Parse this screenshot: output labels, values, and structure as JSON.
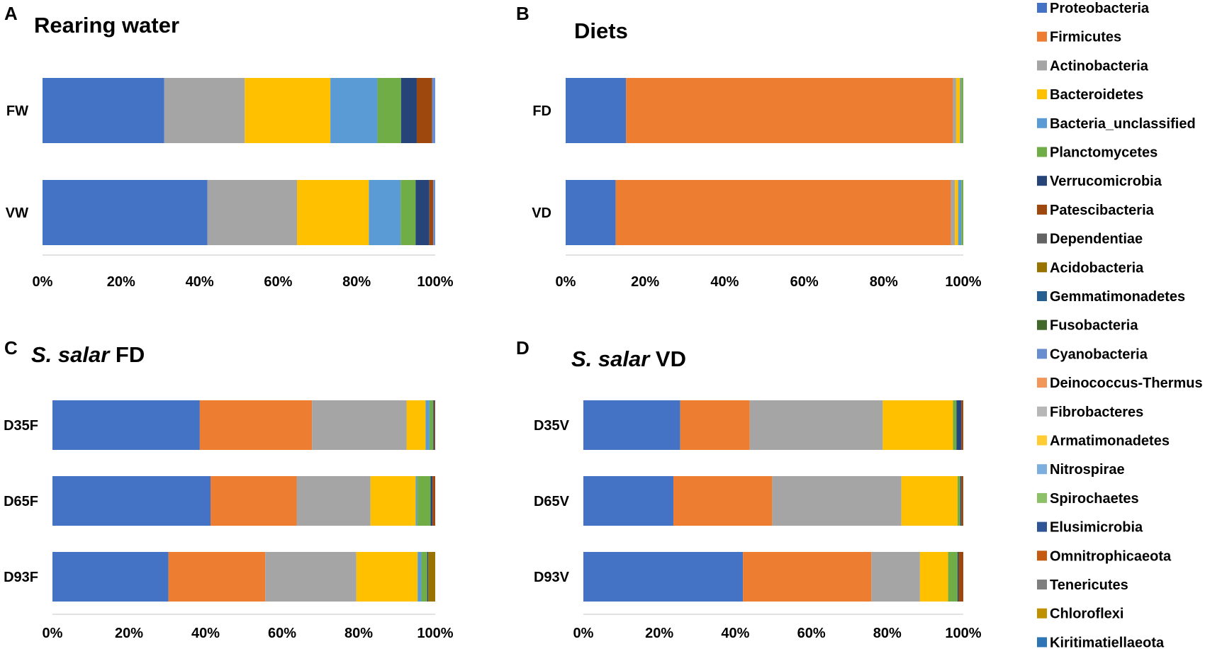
{
  "figure": {
    "legend_title": "",
    "phyla": [
      {
        "name": "Proteobacteria",
        "color": "#4472C4"
      },
      {
        "name": "Firmicutes",
        "color": "#ED7D31"
      },
      {
        "name": "Actinobacteria",
        "color": "#A5A5A5"
      },
      {
        "name": "Bacteroidetes",
        "color": "#FFC000"
      },
      {
        "name": "Bacteria_unclassified",
        "color": "#5B9BD5"
      },
      {
        "name": "Planctomycetes",
        "color": "#70AD47"
      },
      {
        "name": "Verrucomicrobia",
        "color": "#264478"
      },
      {
        "name": "Patescibacteria",
        "color": "#9E480E"
      },
      {
        "name": "Dependentiae",
        "color": "#636363"
      },
      {
        "name": "Acidobacteria",
        "color": "#997300"
      },
      {
        "name": "Gemmatimonadetes",
        "color": "#255E91"
      },
      {
        "name": "Fusobacteria",
        "color": "#43682B"
      },
      {
        "name": "Cyanobacteria",
        "color": "#698ED0"
      },
      {
        "name": "Deinococcus-Thermus",
        "color": "#F1975A"
      },
      {
        "name": "Fibrobacteres",
        "color": "#B7B7B7"
      },
      {
        "name": "Armatimonadetes",
        "color": "#FFCD33"
      },
      {
        "name": "Nitrospirae",
        "color": "#7CAFDD"
      },
      {
        "name": "Spirochaetes",
        "color": "#8CC168"
      },
      {
        "name": "Elusimicrobia",
        "color": "#2F5597"
      },
      {
        "name": "Omnitrophicaeota",
        "color": "#C55A11"
      },
      {
        "name": "Tenericutes",
        "color": "#7F7F7F"
      },
      {
        "name": "Chloroflexi",
        "color": "#BF9000"
      },
      {
        "name": "Kiritimatiellaeota",
        "color": "#2E75B6"
      }
    ]
  },
  "chart_data": [
    {
      "type": "bar",
      "stacked": true,
      "orientation": "horizontal",
      "letter": "A",
      "title": "Rearing water",
      "title_italic": "",
      "title_rest": "",
      "categories": [
        "FW",
        "VW"
      ],
      "xlim": [
        0,
        100
      ],
      "xticks": [
        "0%",
        "20%",
        "40%",
        "60%",
        "80%",
        "100%"
      ],
      "series": [
        {
          "name": "Proteobacteria",
          "values": [
            31,
            42
          ]
        },
        {
          "name": "Firmicutes",
          "values": [
            0,
            0
          ]
        },
        {
          "name": "Actinobacteria",
          "values": [
            20.5,
            22.8
          ]
        },
        {
          "name": "Bacteroidetes",
          "values": [
            21.8,
            18.3
          ]
        },
        {
          "name": "Bacteria_unclassified",
          "values": [
            12,
            8.1
          ]
        },
        {
          "name": "Planctomycetes",
          "values": [
            6,
            3.8
          ]
        },
        {
          "name": "Verrucomicrobia",
          "values": [
            4,
            3.5
          ]
        },
        {
          "name": "Patescibacteria",
          "values": [
            3.9,
            1
          ]
        },
        {
          "name": "Cyanobacteria",
          "values": [
            0.8,
            0.5
          ]
        }
      ]
    },
    {
      "type": "bar",
      "stacked": true,
      "orientation": "horizontal",
      "letter": "B",
      "title": "Diets",
      "title_italic": "",
      "title_rest": "",
      "categories": [
        "FD",
        "VD"
      ],
      "xlim": [
        0,
        100
      ],
      "xticks": [
        "0%",
        "20%",
        "40%",
        "60%",
        "80%",
        "100%"
      ],
      "series": [
        {
          "name": "Proteobacteria",
          "values": [
            15.2,
            12.6
          ]
        },
        {
          "name": "Firmicutes",
          "values": [
            82.2,
            84.3
          ]
        },
        {
          "name": "Actinobacteria",
          "values": [
            0.8,
            1
          ]
        },
        {
          "name": "Bacteroidetes",
          "values": [
            1,
            0.8
          ]
        },
        {
          "name": "Bacteria_unclassified",
          "values": [
            0.3,
            0.8
          ]
        },
        {
          "name": "Planctomycetes",
          "values": [
            0.5,
            0.5
          ]
        }
      ]
    },
    {
      "type": "bar",
      "stacked": true,
      "orientation": "horizontal",
      "letter": "C",
      "title": "",
      "title_italic": "S. salar",
      "title_rest": "FD",
      "categories": [
        "D35F",
        "D65F",
        "D93F"
      ],
      "xlim": [
        0,
        100
      ],
      "xticks": [
        "0%",
        "20%",
        "40%",
        "60%",
        "80%",
        "100%"
      ],
      "series": [
        {
          "name": "Proteobacteria",
          "values": [
            38.5,
            41.3,
            30.3
          ]
        },
        {
          "name": "Firmicutes",
          "values": [
            29.3,
            22.5,
            25.3
          ]
        },
        {
          "name": "Actinobacteria",
          "values": [
            24.7,
            19.3,
            23.8
          ]
        },
        {
          "name": "Bacteroidetes",
          "values": [
            5,
            11.8,
            16
          ]
        },
        {
          "name": "Bacteria_unclassified",
          "values": [
            1,
            0.4,
            1
          ]
        },
        {
          "name": "Planctomycetes",
          "values": [
            1,
            3.5,
            1.5
          ]
        },
        {
          "name": "Verrucomicrobia",
          "values": [
            0.3,
            0.5,
            0.3
          ]
        },
        {
          "name": "Patescibacteria",
          "values": [
            0.2,
            0.7,
            0
          ]
        },
        {
          "name": "Acidobacteria",
          "values": [
            0,
            0,
            1.8
          ]
        }
      ]
    },
    {
      "type": "bar",
      "stacked": true,
      "orientation": "horizontal",
      "letter": "D",
      "title": "",
      "title_italic": "S. salar",
      "title_rest": "VD",
      "categories": [
        "D35V",
        "D65V",
        "D93V"
      ],
      "xlim": [
        0,
        100
      ],
      "xticks": [
        "0%",
        "20%",
        "40%",
        "60%",
        "80%",
        "100%"
      ],
      "series": [
        {
          "name": "Proteobacteria",
          "values": [
            25.5,
            23.7,
            42
          ]
        },
        {
          "name": "Firmicutes",
          "values": [
            18.3,
            26,
            33.8
          ]
        },
        {
          "name": "Actinobacteria",
          "values": [
            35,
            34,
            12.8
          ]
        },
        {
          "name": "Bacteroidetes",
          "values": [
            18.5,
            14.8,
            7.4
          ]
        },
        {
          "name": "Planctomycetes",
          "values": [
            0.9,
            0.7,
            2.5
          ]
        },
        {
          "name": "Verrucomicrobia",
          "values": [
            1.3,
            0.3,
            0.3
          ]
        },
        {
          "name": "Patescibacteria",
          "values": [
            0.5,
            0.5,
            1.2
          ]
        }
      ]
    }
  ]
}
